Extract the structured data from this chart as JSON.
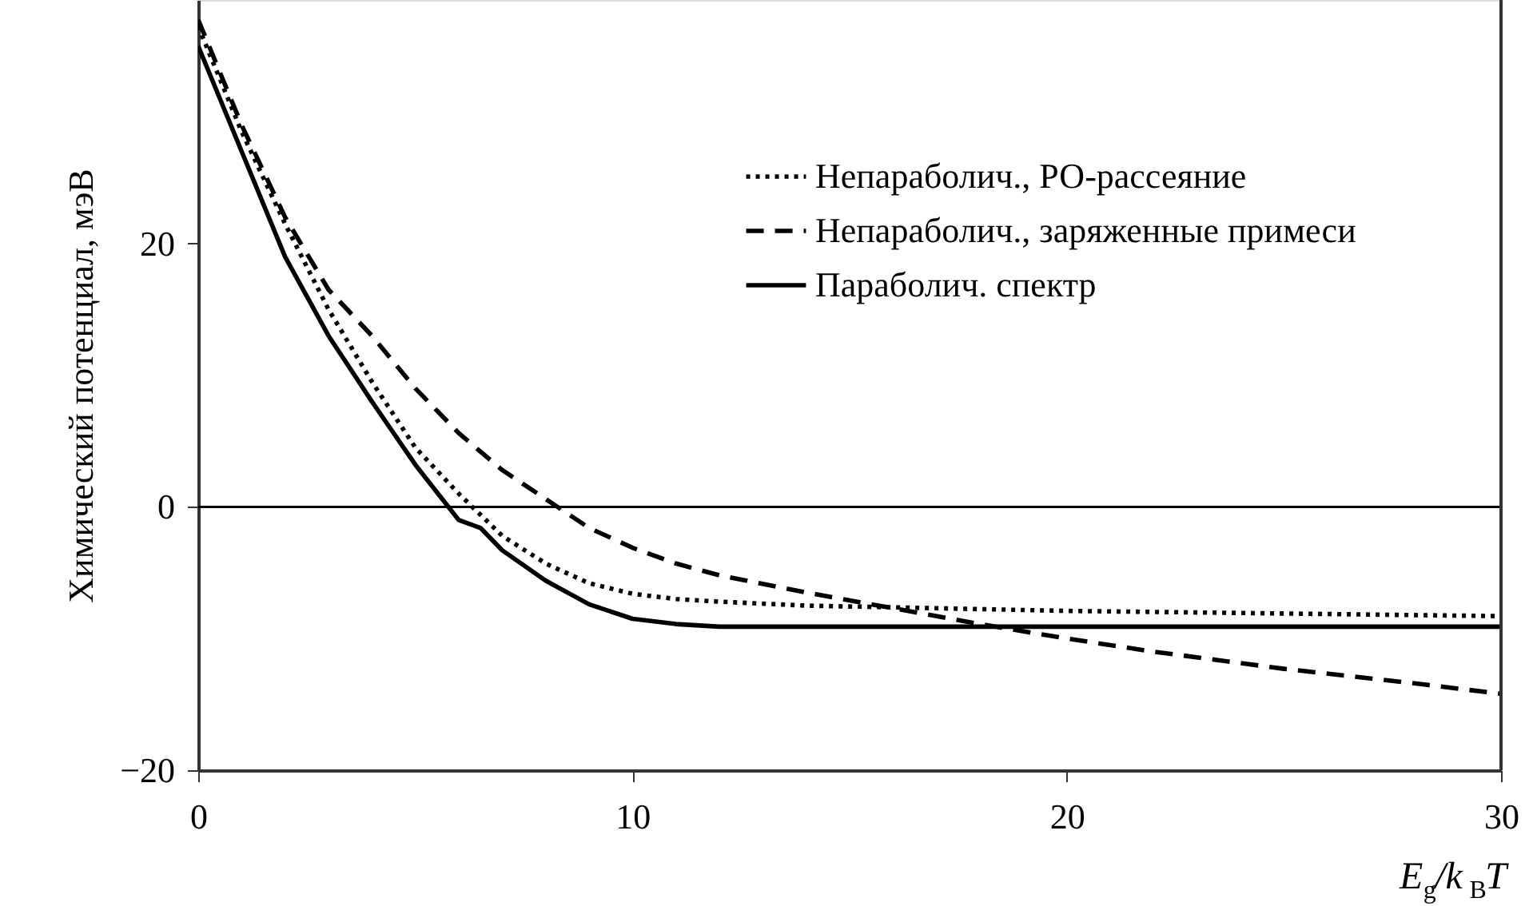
{
  "chart_data": {
    "type": "line",
    "xlabel": "E$_{g}$/k$_{B}$T",
    "ylabel": "Химический потенциал, мэВ",
    "xlim": [
      0,
      30
    ],
    "xticks": [
      0,
      10,
      20,
      30
    ],
    "ylim": [
      -20,
      38.5
    ],
    "yticks": [
      {
        "value": -20,
        "label": "−20"
      },
      0,
      20
    ],
    "grid": false,
    "legend": "top right",
    "marker": "none",
    "ref_lines": [
      {
        "axis": "y",
        "value": 0,
        "color": "#000000",
        "line_style": "solid"
      }
    ],
    "series": [
      {
        "name": "Непараболич., РО-рассеяние",
        "color": "#000000",
        "line_style": "dotted",
        "x": [
          0,
          1,
          2,
          3,
          4,
          5,
          6,
          7,
          8,
          9,
          10,
          11,
          12,
          14,
          17,
          20,
          25,
          30
        ],
        "values": [
          36.5,
          28.5,
          21.5,
          15,
          9.5,
          4.5,
          1,
          -2.2,
          -4.3,
          -5.8,
          -6.6,
          -7,
          -7.2,
          -7.5,
          -7.7,
          -7.9,
          -8.1,
          -8.3
        ]
      },
      {
        "name": "Непараболич., заряженные примеси",
        "color": "#000000",
        "line_style": "dashed",
        "x": [
          0,
          1,
          2,
          3,
          4,
          5,
          6,
          7,
          8,
          9,
          10,
          11,
          12,
          14,
          16,
          18,
          20,
          22,
          25,
          28,
          30
        ],
        "values": [
          37,
          29,
          22,
          16.5,
          13,
          9,
          5.6,
          2.8,
          0.6,
          -1.6,
          -3.1,
          -4.3,
          -5.2,
          -6.5,
          -7.7,
          -8.9,
          -10,
          -11,
          -12.3,
          -13.4,
          -14.2
        ]
      },
      {
        "name": "Параболич. спектр",
        "color": "#000000",
        "line_style": "solid",
        "x": [
          0,
          1,
          2,
          3,
          4,
          5,
          6,
          6.5,
          7,
          8,
          9,
          10,
          11,
          12,
          15,
          20,
          25,
          30
        ],
        "values": [
          35,
          27,
          19,
          13,
          8,
          3.2,
          -1,
          -1.6,
          -3.3,
          -5.6,
          -7.4,
          -8.5,
          -8.9,
          -9.1,
          -9.1,
          -9.1,
          -9.1,
          -9.1
        ]
      }
    ]
  }
}
